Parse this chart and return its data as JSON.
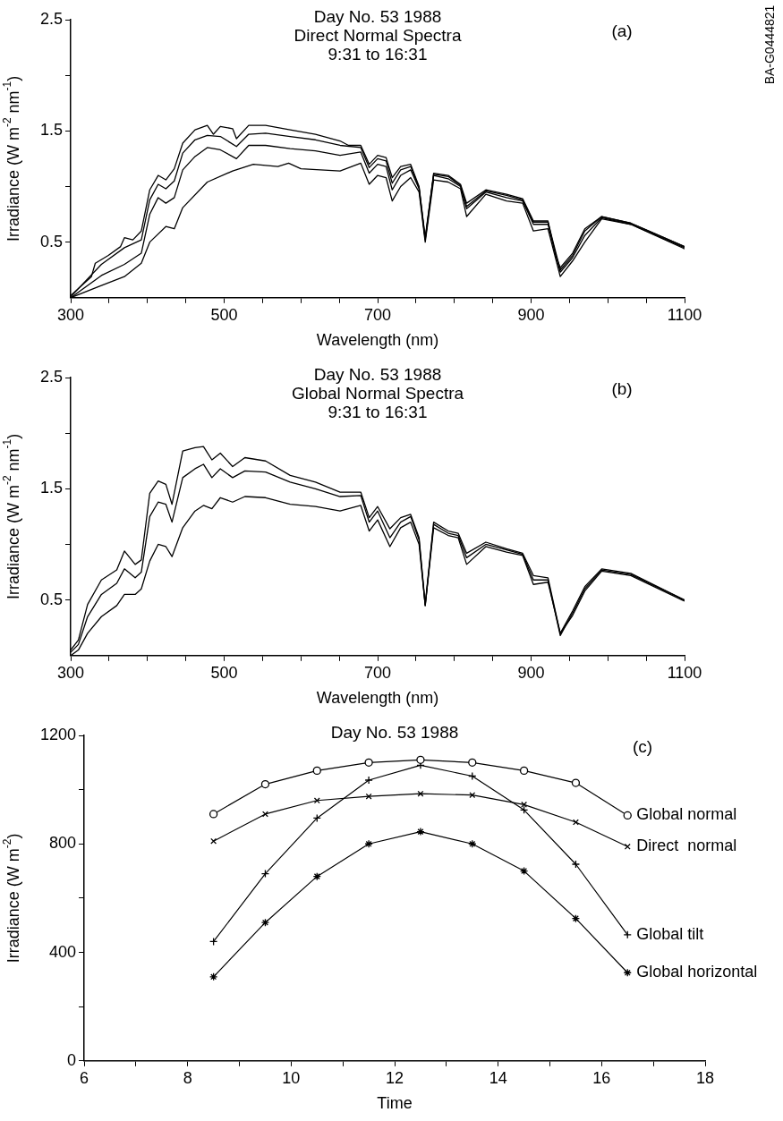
{
  "chart_data": [
    {
      "type": "line",
      "title": "Day No. 53 1988",
      "subtitle": "Direct Normal Spectra\n9:31 to 16:31",
      "xlabel": "Wavelength (nm)",
      "ylabel": "Irradiance (W m$^{-2}$ nm$^{-1}$)",
      "annotations": [
        "(a)",
        "BA-G0444821"
      ],
      "marker": "none",
      "legend": false,
      "xlim": [
        300,
        1100
      ],
      "ylim": [
        0,
        2.5
      ],
      "xticks": [
        300,
        {
          "value": 350,
          "label": null
        },
        {
          "value": 400,
          "label": null
        },
        {
          "value": 450,
          "label": null
        },
        500,
        {
          "value": 550,
          "label": null
        },
        {
          "value": 600,
          "label": null
        },
        {
          "value": 650,
          "label": null
        },
        700,
        {
          "value": 750,
          "label": null
        },
        {
          "value": 800,
          "label": null
        },
        {
          "value": 850,
          "label": null
        },
        900,
        {
          "value": 950,
          "label": null
        },
        {
          "value": 1000,
          "label": null
        },
        {
          "value": 1050,
          "label": null
        },
        1100
      ],
      "yticks": [
        0.5,
        {
          "value": 1,
          "label": null
        },
        1.5,
        {
          "value": 2,
          "label": null
        },
        2.5
      ],
      "series": [
        {
          "color": "#000000",
          "x": [
            300,
            327,
            332,
            349,
            365,
            370,
            381,
            392,
            403,
            414,
            424,
            435,
            446,
            462,
            478,
            486,
            495,
            511,
            516,
            532,
            554,
            586,
            619,
            651,
            662,
            678,
            689,
            700,
            711,
            719,
            730,
            743,
            754,
            762,
            773,
            792,
            808,
            816,
            841,
            868,
            889,
            903,
            922,
            932,
            938,
            954,
            970,
            992,
            1030,
            1100
          ],
          "values": [
            0.02,
            0.19,
            0.31,
            0.38,
            0.46,
            0.54,
            0.52,
            0.6,
            0.97,
            1.1,
            1.06,
            1.16,
            1.39,
            1.51,
            1.55,
            1.47,
            1.54,
            1.52,
            1.43,
            1.55,
            1.55,
            1.51,
            1.47,
            1.41,
            1.37,
            1.37,
            1.2,
            1.28,
            1.26,
            1.08,
            1.18,
            1.2,
            1.0,
            0.54,
            1.12,
            1.1,
            1.02,
            0.85,
            0.97,
            0.93,
            0.89,
            0.69,
            0.69,
            0.38,
            0.27,
            0.4,
            0.62,
            0.73,
            0.67,
            0.46
          ]
        },
        {
          "color": "#000000",
          "x": [
            300,
            340,
            370,
            392,
            403,
            414,
            424,
            435,
            446,
            462,
            478,
            495,
            516,
            532,
            554,
            586,
            619,
            651,
            678,
            689,
            700,
            711,
            719,
            730,
            743,
            754,
            762,
            773,
            792,
            808,
            816,
            841,
            868,
            889,
            903,
            922,
            938,
            954,
            970,
            992,
            1030,
            1100
          ],
          "values": [
            0.01,
            0.3,
            0.45,
            0.52,
            0.88,
            1.02,
            0.98,
            1.05,
            1.3,
            1.42,
            1.46,
            1.45,
            1.36,
            1.47,
            1.48,
            1.45,
            1.42,
            1.37,
            1.35,
            1.17,
            1.25,
            1.23,
            1.03,
            1.15,
            1.18,
            0.99,
            0.53,
            1.11,
            1.09,
            1.01,
            0.82,
            0.96,
            0.92,
            0.88,
            0.68,
            0.68,
            0.25,
            0.38,
            0.6,
            0.73,
            0.67,
            0.46
          ]
        },
        {
          "color": "#000000",
          "x": [
            300,
            340,
            370,
            392,
            403,
            414,
            424,
            435,
            446,
            462,
            478,
            495,
            516,
            532,
            554,
            586,
            619,
            651,
            678,
            689,
            700,
            711,
            719,
            730,
            743,
            754,
            762,
            773,
            792,
            808,
            816,
            841,
            868,
            889,
            903,
            922,
            938,
            954,
            970,
            992,
            1030,
            1100
          ],
          "values": [
            0.0,
            0.2,
            0.3,
            0.4,
            0.75,
            0.9,
            0.85,
            0.9,
            1.15,
            1.27,
            1.35,
            1.33,
            1.25,
            1.37,
            1.37,
            1.34,
            1.32,
            1.28,
            1.31,
            1.12,
            1.2,
            1.18,
            0.97,
            1.1,
            1.15,
            0.98,
            0.52,
            1.1,
            1.07,
            1.0,
            0.8,
            0.95,
            0.9,
            0.87,
            0.66,
            0.66,
            0.23,
            0.36,
            0.56,
            0.72,
            0.66,
            0.45
          ]
        },
        {
          "color": "#000000",
          "x": [
            300,
            340,
            370,
            392,
            403,
            424,
            435,
            446,
            478,
            511,
            538,
            570,
            584,
            600,
            651,
            678,
            689,
            700,
            711,
            719,
            730,
            743,
            754,
            762,
            773,
            792,
            808,
            816,
            841,
            868,
            889,
            903,
            922,
            938,
            954,
            970,
            992,
            1030,
            1100
          ],
          "values": [
            0.0,
            0.11,
            0.19,
            0.31,
            0.5,
            0.64,
            0.62,
            0.81,
            1.04,
            1.14,
            1.2,
            1.18,
            1.21,
            1.16,
            1.14,
            1.21,
            1.02,
            1.1,
            1.08,
            0.87,
            1.0,
            1.08,
            0.95,
            0.5,
            1.06,
            1.04,
            0.98,
            0.73,
            0.93,
            0.87,
            0.85,
            0.6,
            0.62,
            0.19,
            0.33,
            0.5,
            0.71,
            0.66,
            0.44
          ]
        }
      ]
    },
    {
      "type": "line",
      "title": "Day No. 53 1988",
      "subtitle": "Global Normal Spectra\n9:31 to 16:31",
      "xlabel": "Wavelength (nm)",
      "ylabel": "Irradiance (W m$^{-2}$ nm$^{-1}$)",
      "annotations": [
        "(b)"
      ],
      "marker": "none",
      "legend": false,
      "xlim": [
        300,
        1100
      ],
      "ylim": [
        0,
        2.5
      ],
      "xticks": [
        300,
        {
          "value": 350,
          "label": null
        },
        {
          "value": 400,
          "label": null
        },
        {
          "value": 450,
          "label": null
        },
        500,
        {
          "value": 550,
          "label": null
        },
        {
          "value": 600,
          "label": null
        },
        {
          "value": 650,
          "label": null
        },
        700,
        {
          "value": 750,
          "label": null
        },
        {
          "value": 800,
          "label": null
        },
        {
          "value": 850,
          "label": null
        },
        900,
        {
          "value": 950,
          "label": null
        },
        {
          "value": 1000,
          "label": null
        },
        {
          "value": 1050,
          "label": null
        },
        1100
      ],
      "yticks": [
        0.5,
        {
          "value": 1,
          "label": null
        },
        1.5,
        {
          "value": 2,
          "label": null
        },
        2.5
      ],
      "x": [
        300,
        310,
        322,
        340,
        360,
        370,
        384,
        392,
        403,
        414,
        424,
        432,
        446,
        462,
        473,
        484,
        495,
        511,
        527,
        554,
        586,
        619,
        651,
        678,
        689,
        700,
        716,
        730,
        743,
        754,
        762,
        773,
        792,
        805,
        816,
        841,
        868,
        889,
        903,
        922,
        938,
        954,
        970,
        992,
        1030,
        1100
      ],
      "series": [
        {
          "color": "#000000",
          "values": [
            0.05,
            0.14,
            0.46,
            0.68,
            0.77,
            0.94,
            0.82,
            0.86,
            1.46,
            1.57,
            1.54,
            1.36,
            1.84,
            1.87,
            1.88,
            1.76,
            1.82,
            1.7,
            1.78,
            1.75,
            1.62,
            1.56,
            1.47,
            1.47,
            1.24,
            1.34,
            1.14,
            1.24,
            1.27,
            1.06,
            0.46,
            1.2,
            1.12,
            1.1,
            0.92,
            1.02,
            0.96,
            0.92,
            0.72,
            0.7,
            0.2,
            0.4,
            0.62,
            0.78,
            0.74,
            0.5
          ]
        },
        {
          "color": "#000000",
          "values": [
            0.03,
            0.1,
            0.35,
            0.55,
            0.65,
            0.78,
            0.7,
            0.75,
            1.25,
            1.38,
            1.36,
            1.2,
            1.6,
            1.68,
            1.72,
            1.6,
            1.68,
            1.6,
            1.66,
            1.65,
            1.56,
            1.5,
            1.43,
            1.44,
            1.2,
            1.3,
            1.06,
            1.2,
            1.25,
            1.04,
            0.45,
            1.18,
            1.1,
            1.08,
            0.88,
            1.0,
            0.95,
            0.91,
            0.68,
            0.68,
            0.18,
            0.38,
            0.6,
            0.77,
            0.73,
            0.5
          ]
        },
        {
          "color": "#000000",
          "values": [
            0.0,
            0.05,
            0.2,
            0.35,
            0.45,
            0.55,
            0.55,
            0.6,
            0.85,
            1.0,
            0.98,
            0.89,
            1.15,
            1.3,
            1.35,
            1.32,
            1.42,
            1.38,
            1.43,
            1.42,
            1.36,
            1.34,
            1.3,
            1.35,
            1.12,
            1.22,
            0.98,
            1.15,
            1.2,
            1.0,
            0.45,
            1.15,
            1.08,
            1.06,
            0.82,
            0.98,
            0.93,
            0.9,
            0.64,
            0.66,
            0.2,
            0.36,
            0.58,
            0.76,
            0.72,
            0.49
          ]
        }
      ]
    },
    {
      "type": "line",
      "title": "Day No. 53 1988",
      "xlabel": "Time",
      "ylabel": "Irradiance (W m$^{-2}$)",
      "annotations": [
        "(c)"
      ],
      "legend": false,
      "xlim": [
        6,
        18
      ],
      "ylim": [
        0,
        1200
      ],
      "xticks": [
        6,
        {
          "value": 7,
          "label": null
        },
        8,
        {
          "value": 9,
          "label": null
        },
        10,
        {
          "value": 11,
          "label": null
        },
        12,
        {
          "value": 13,
          "label": null
        },
        14,
        {
          "value": 15,
          "label": null
        },
        16,
        {
          "value": 17,
          "label": null
        },
        18
      ],
      "yticks": [
        0,
        {
          "value": 200,
          "label": null
        },
        400,
        {
          "value": 600,
          "label": null
        },
        800,
        {
          "value": 1000,
          "label": null
        },
        1200
      ],
      "x": [
        8.5,
        9.5,
        10.5,
        11.5,
        12.5,
        13.5,
        14.5,
        15.5,
        16.5
      ],
      "series": [
        {
          "name": "Global normal",
          "color": "#000000",
          "marker": "circle",
          "values": [
            910,
            1020,
            1070,
            1100,
            1110,
            1100,
            1070,
            1025,
            905
          ]
        },
        {
          "name": "Direct  normal",
          "color": "#000000",
          "marker": "x",
          "values": [
            810,
            910,
            960,
            975,
            985,
            980,
            945,
            880,
            790
          ]
        },
        {
          "name": "Global tilt",
          "color": "#000000",
          "marker": "plus",
          "values": [
            440,
            690,
            895,
            1035,
            1090,
            1050,
            925,
            725,
            465
          ]
        },
        {
          "name": "Global horizontal",
          "color": "#000000",
          "marker": "cross",
          "values": [
            310,
            510,
            680,
            800,
            845,
            800,
            700,
            525,
            325
          ]
        }
      ]
    }
  ]
}
